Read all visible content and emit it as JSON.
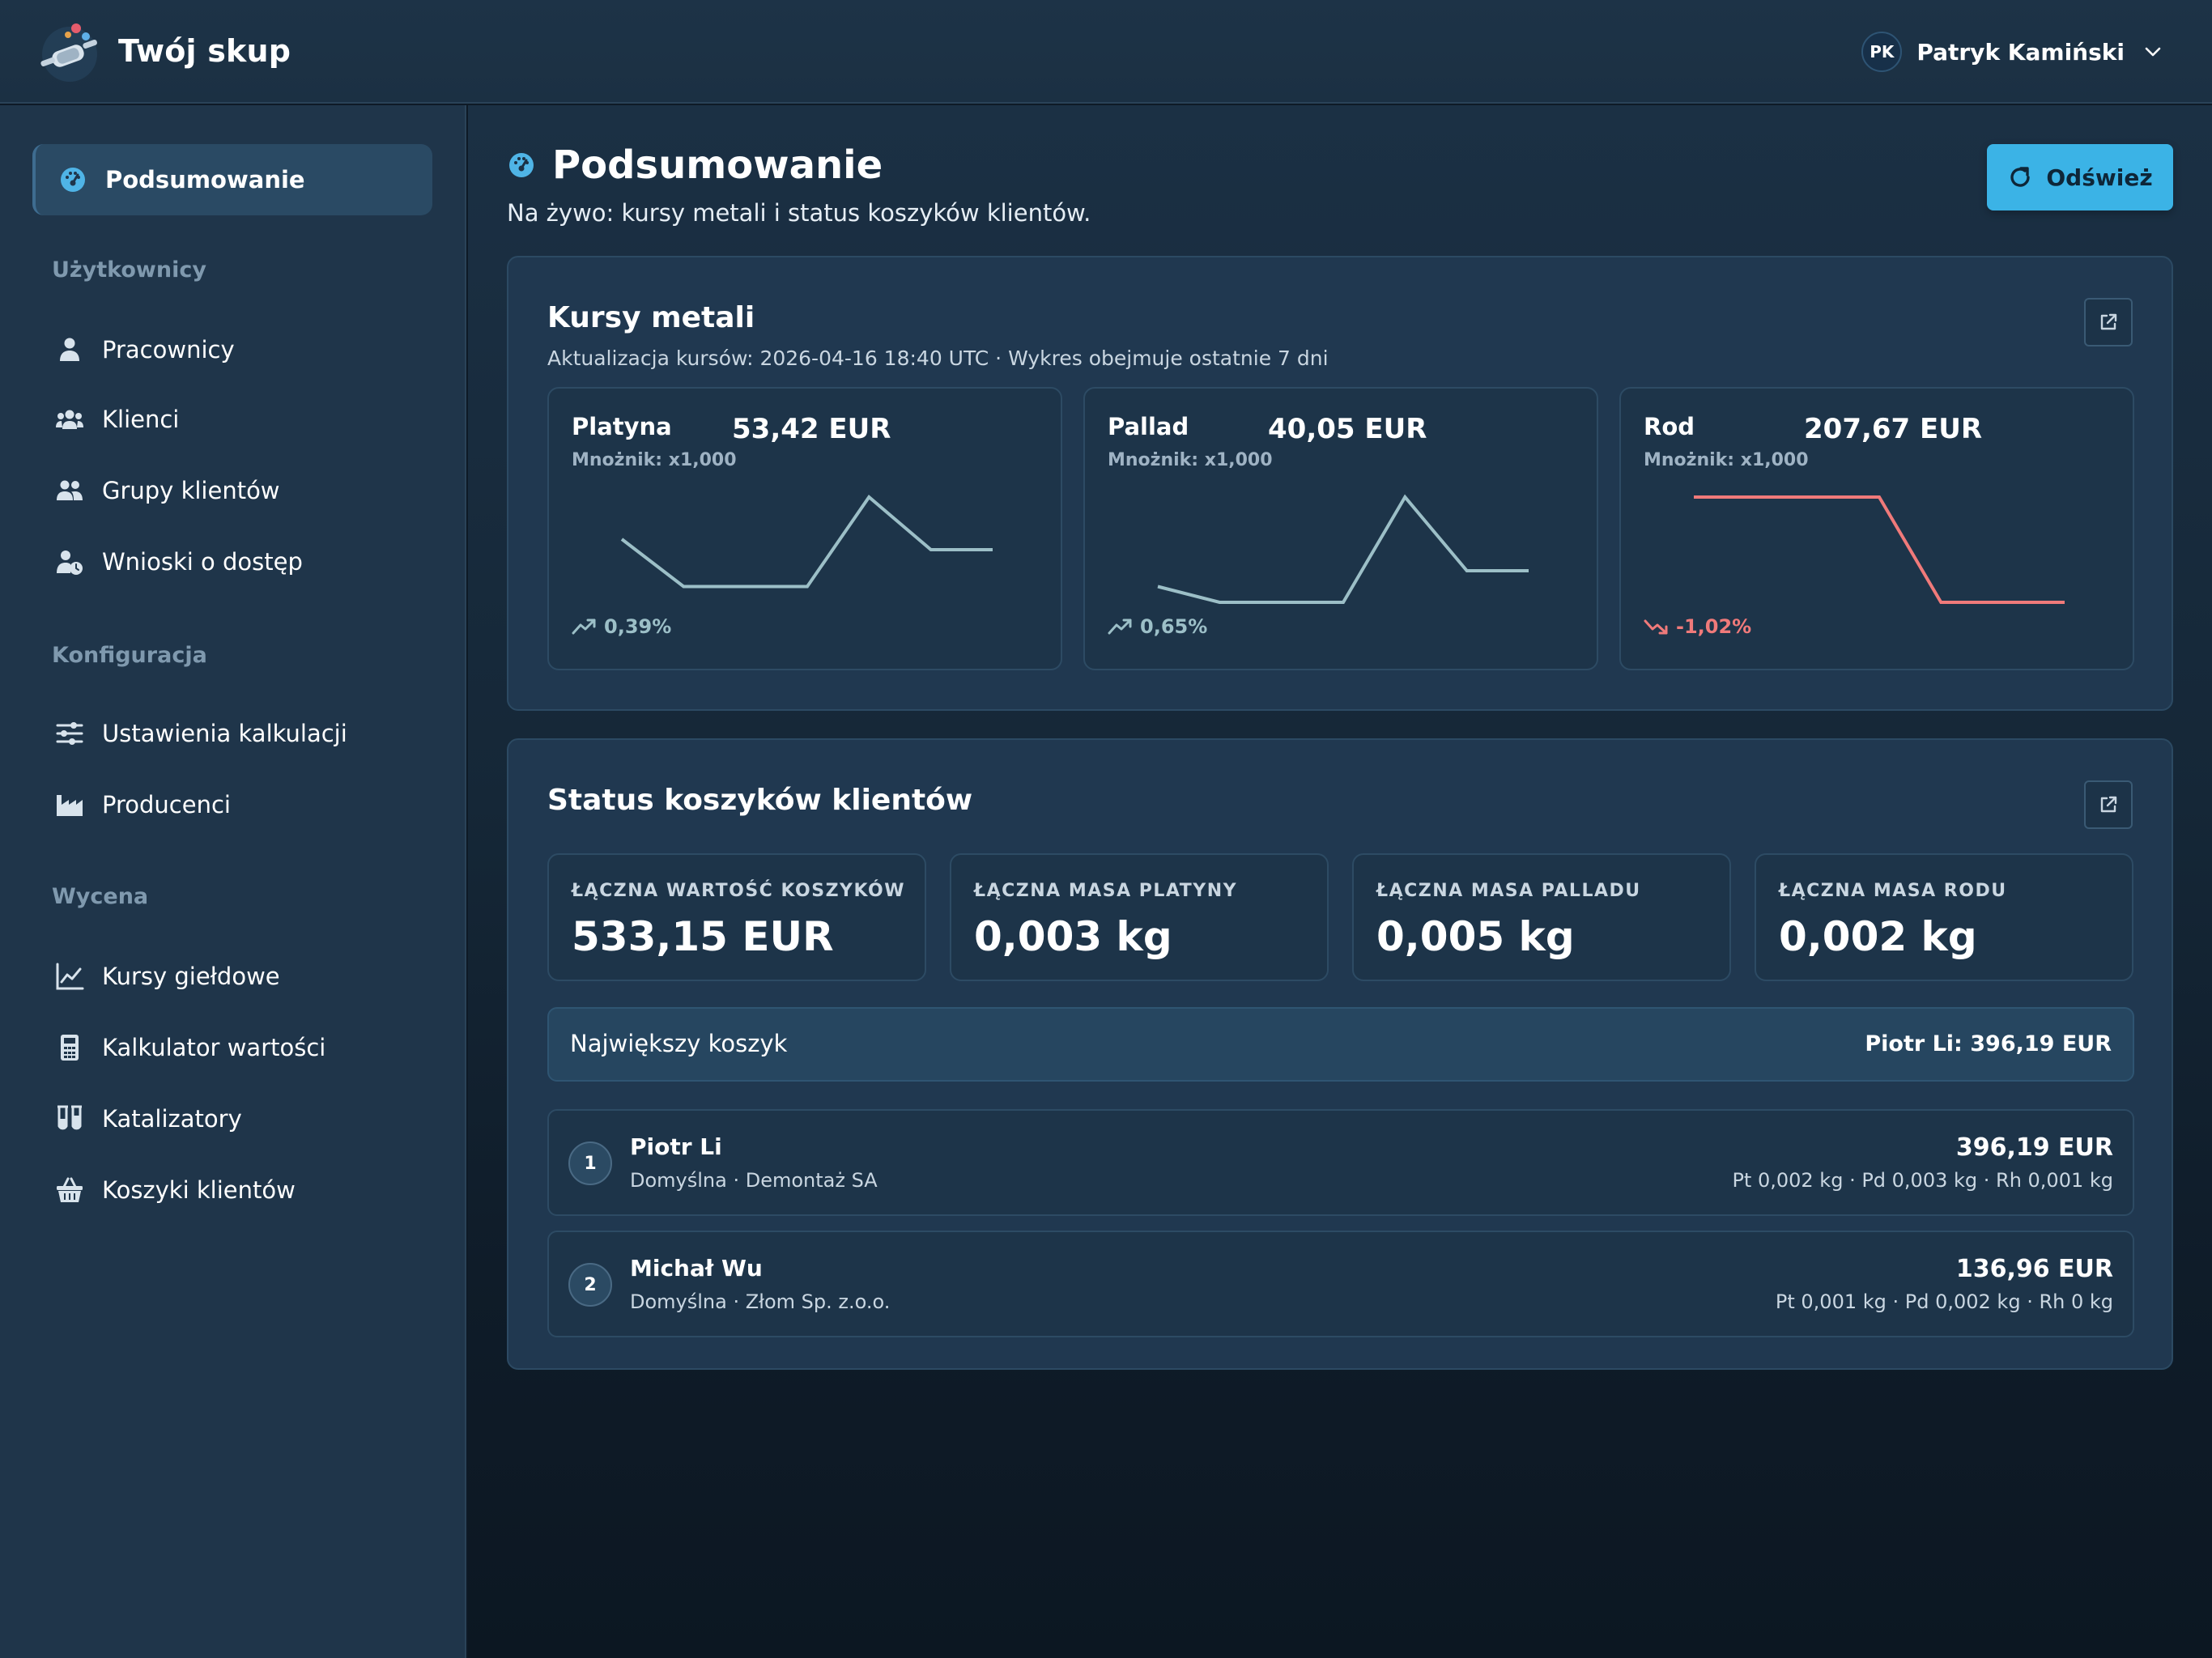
{
  "app": {
    "name": "Twój skup"
  },
  "user": {
    "initials": "PK",
    "name": "Patryk Kamiński"
  },
  "sidebar": {
    "active": {
      "label": "Podsumowanie",
      "icon": "gauge-icon"
    },
    "sections": [
      {
        "title": "Użytkownicy",
        "items": [
          {
            "label": "Pracownicy",
            "icon": "user-icon"
          },
          {
            "label": "Klienci",
            "icon": "users-icon"
          },
          {
            "label": "Grupy klientów",
            "icon": "user-group-icon"
          },
          {
            "label": "Wnioski o dostęp",
            "icon": "user-clock-icon"
          }
        ]
      },
      {
        "title": "Konfiguracja",
        "items": [
          {
            "label": "Ustawienia kalkulacji",
            "icon": "sliders-icon"
          },
          {
            "label": "Producenci",
            "icon": "factory-icon"
          }
        ]
      },
      {
        "title": "Wycena",
        "items": [
          {
            "label": "Kursy giełdowe",
            "icon": "chart-line-icon"
          },
          {
            "label": "Kalkulator wartości",
            "icon": "calculator-icon"
          },
          {
            "label": "Katalizatory",
            "icon": "flask-icon"
          },
          {
            "label": "Koszyki klientów",
            "icon": "basket-icon"
          }
        ]
      }
    ]
  },
  "page": {
    "title": "Podsumowanie",
    "subtitle": "Na żywo: kursy metali i status koszyków klientów.",
    "refresh_label": "Odśwież"
  },
  "metals_card": {
    "title": "Kursy metali",
    "subtitle": "Aktualizacja kursów: 2026-04-16 18:40 UTC · Wykres obejmuje ostatnie 7 dni",
    "up_color": "#9cbfc7",
    "down_color": "#f07a7a",
    "metals": [
      {
        "name": "Platyna",
        "price": "53,42 EUR",
        "multiplier": "Mnożnik: x1,000",
        "change": "0,39%",
        "trend": "up"
      },
      {
        "name": "Pallad",
        "price": "40,05 EUR",
        "multiplier": "Mnożnik: x1,000",
        "change": "0,65%",
        "trend": "up"
      },
      {
        "name": "Rod",
        "price": "207,67 EUR",
        "multiplier": "Mnożnik: x1,000",
        "change": "-1,02%",
        "trend": "down"
      }
    ]
  },
  "chart_data": [
    {
      "type": "line",
      "series": [
        {
          "values": [
            0.6,
            0.15,
            0.15,
            0.15,
            1.0,
            0.5,
            0.5
          ]
        }
      ]
    },
    {
      "type": "line",
      "series": [
        {
          "values": [
            0.15,
            0.0,
            0.0,
            0.0,
            1.0,
            0.3,
            0.3
          ]
        }
      ]
    },
    {
      "type": "line",
      "series": [
        {
          "values": [
            1.0,
            1.0,
            1.0,
            1.0,
            0.0,
            0.0,
            0.0
          ]
        }
      ]
    }
  ],
  "baskets_card": {
    "title": "Status koszyków klientów",
    "stats": [
      {
        "label": "ŁĄCZNA WARTOŚĆ KOSZYKÓW",
        "value": "533,15 EUR"
      },
      {
        "label": "ŁĄCZNA MASA PLATYNY",
        "value": "0,003 kg"
      },
      {
        "label": "ŁĄCZNA MASA PALLADU",
        "value": "0,005 kg"
      },
      {
        "label": "ŁĄCZNA MASA RODU",
        "value": "0,002 kg"
      }
    ],
    "biggest_label": "Największy koszyk",
    "biggest_value": "Piotr Li: 396,19 EUR",
    "rows": [
      {
        "rank": "1",
        "name": "Piotr Li",
        "sub": "Domyślna · Demontaż SA",
        "value": "396,19 EUR",
        "mass": "Pt 0,002 kg · Pd 0,003 kg · Rh 0,001 kg"
      },
      {
        "rank": "2",
        "name": "Michał Wu",
        "sub": "Domyślna · Złom Sp. z.o.o.",
        "value": "136,96 EUR",
        "mass": "Pt 0,001 kg · Pd 0,002 kg · Rh 0 kg"
      }
    ]
  }
}
